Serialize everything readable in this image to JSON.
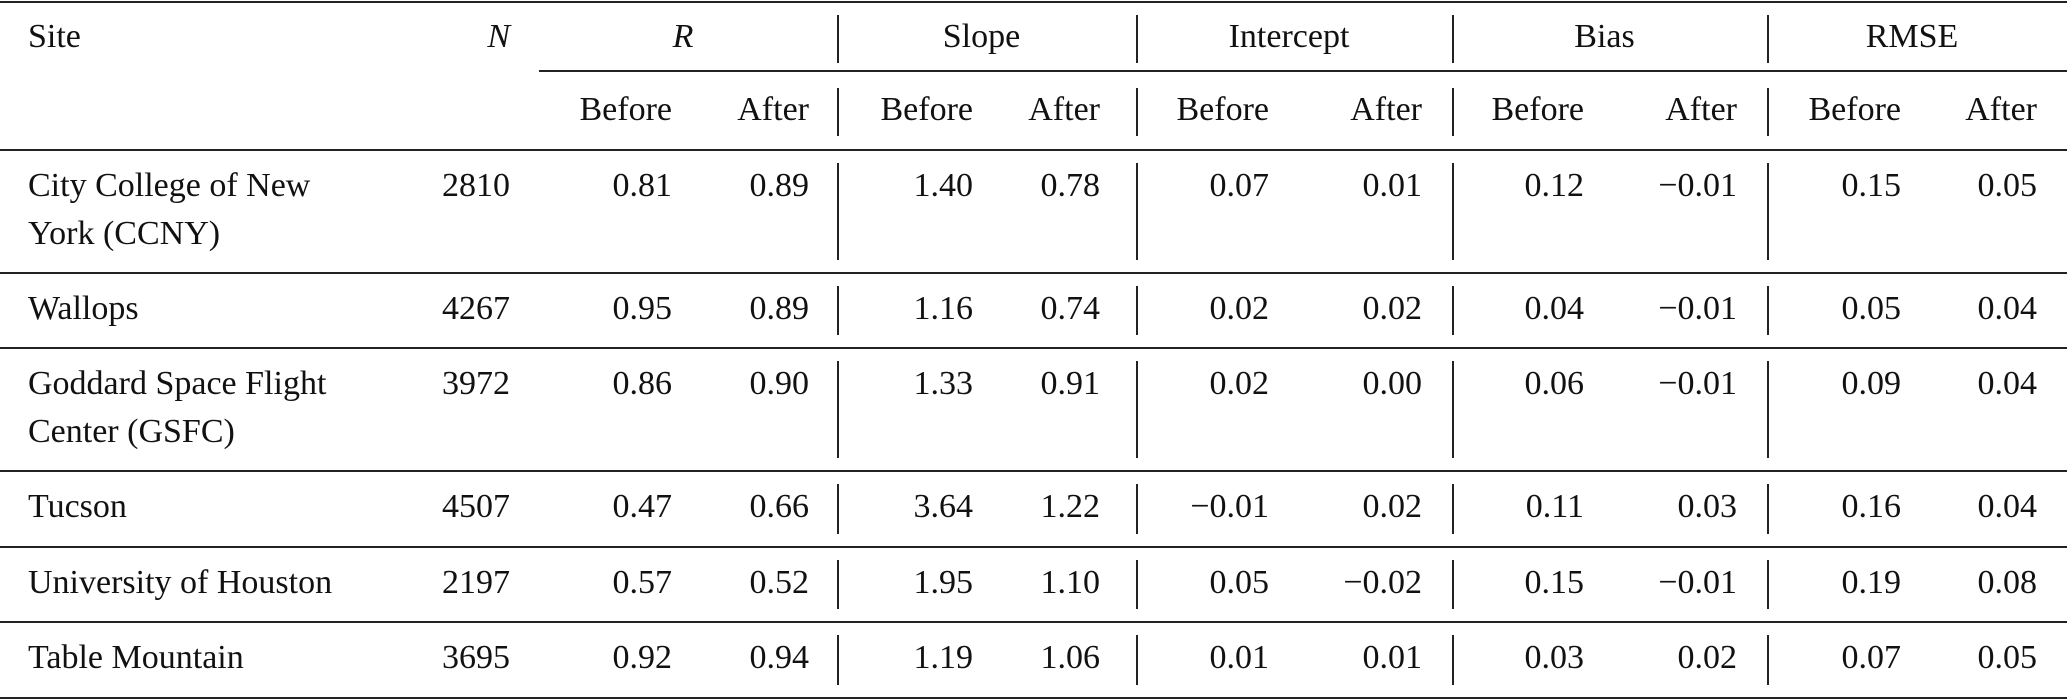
{
  "header": {
    "site": "Site",
    "n": "N",
    "groups": [
      "R",
      "Slope",
      "Intercept",
      "Bias",
      "RMSE"
    ],
    "sub": [
      "Before",
      "After"
    ]
  },
  "rows": [
    {
      "site": [
        "City College of New",
        "York (CCNY)"
      ],
      "n": "2810",
      "values": [
        "0.81",
        "0.89",
        "1.40",
        "0.78",
        "0.07",
        "0.01",
        "0.12",
        "−0.01",
        "0.15",
        "0.05"
      ]
    },
    {
      "site": [
        "Wallops"
      ],
      "n": "4267",
      "values": [
        "0.95",
        "0.89",
        "1.16",
        "0.74",
        "0.02",
        "0.02",
        "0.04",
        "−0.01",
        "0.05",
        "0.04"
      ]
    },
    {
      "site": [
        "Goddard Space Flight",
        "Center (GSFC)"
      ],
      "n": "3972",
      "values": [
        "0.86",
        "0.90",
        "1.33",
        "0.91",
        "0.02",
        "0.00",
        "0.06",
        "−0.01",
        "0.09",
        "0.04"
      ]
    },
    {
      "site": [
        "Tucson"
      ],
      "n": "4507",
      "values": [
        "0.47",
        "0.66",
        "3.64",
        "1.22",
        "−0.01",
        "0.02",
        "0.11",
        "0.03",
        "0.16",
        "0.04"
      ]
    },
    {
      "site": [
        "University of Houston"
      ],
      "n": "2197",
      "values": [
        "0.57",
        "0.52",
        "1.95",
        "1.10",
        "0.05",
        "−0.02",
        "0.15",
        "−0.01",
        "0.19",
        "0.08"
      ]
    },
    {
      "site": [
        "Table Mountain"
      ],
      "n": "3695",
      "values": [
        "0.92",
        "0.94",
        "1.19",
        "1.06",
        "0.01",
        "0.01",
        "0.03",
        "0.02",
        "0.07",
        "0.05"
      ]
    }
  ]
}
